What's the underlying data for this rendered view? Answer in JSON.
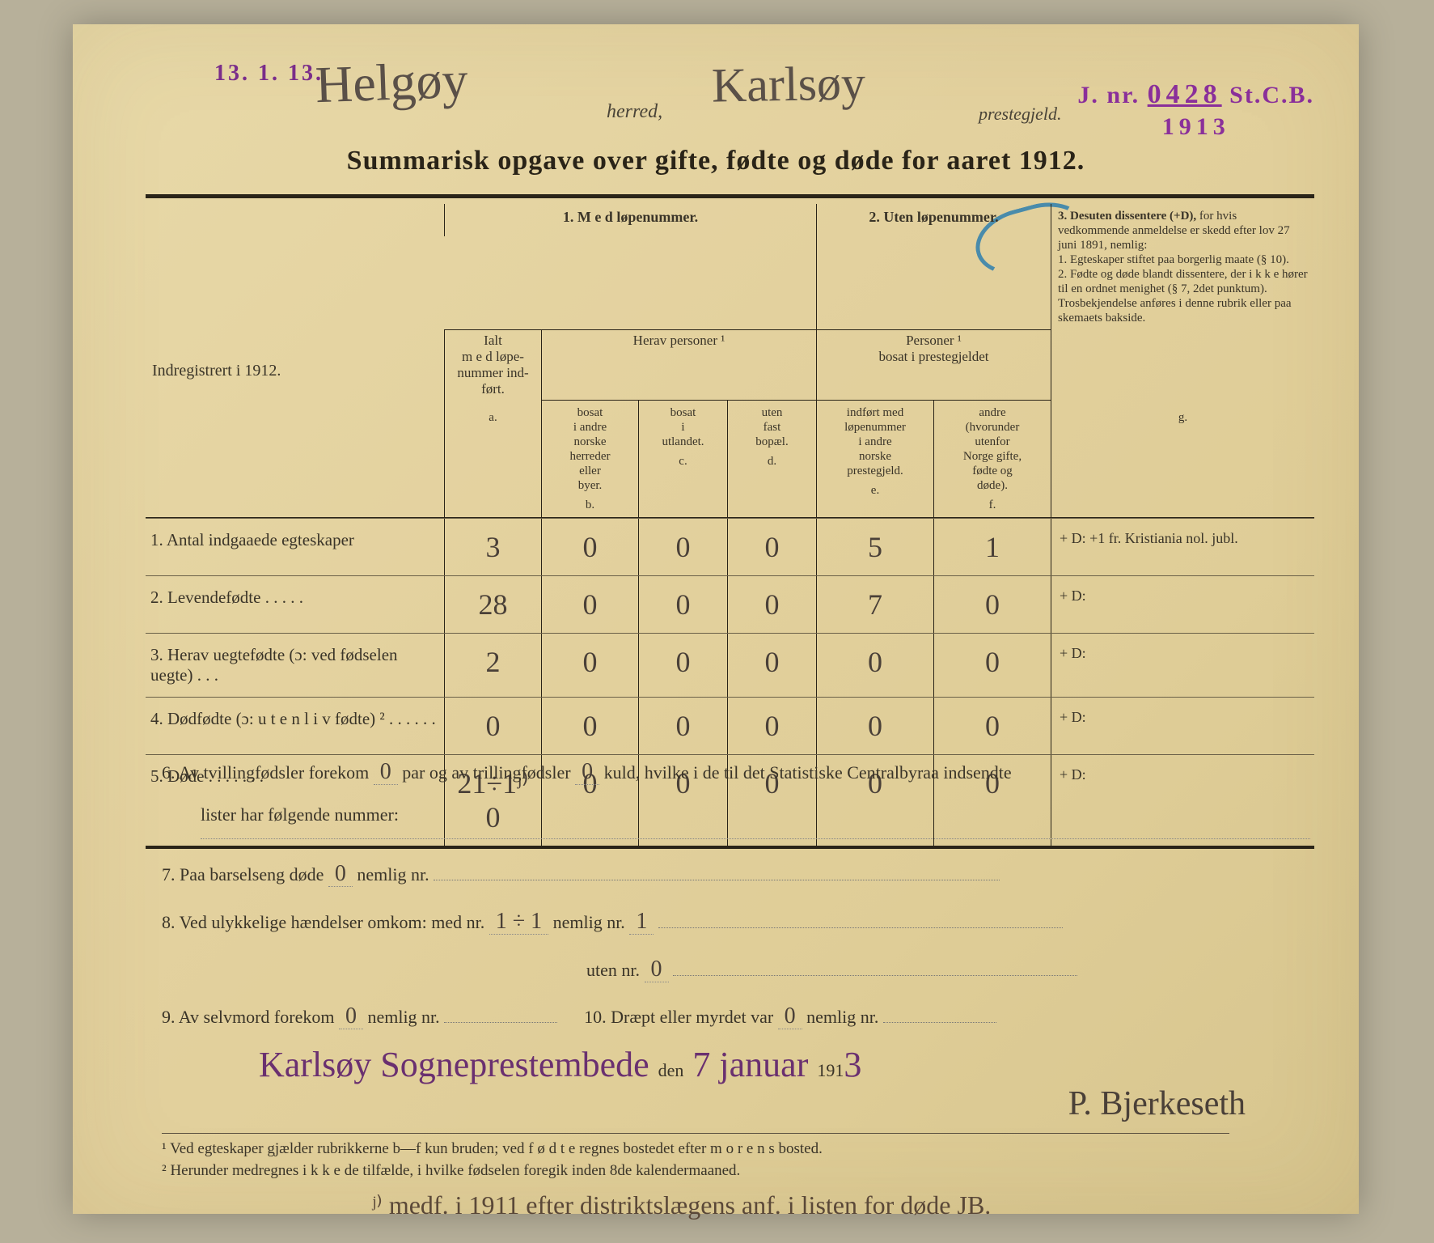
{
  "colors": {
    "background": "#b7b09a",
    "paper_grad_start": "#e8d9a8",
    "paper_grad_end": "#d7c58e",
    "ink": "#3a3428",
    "stamp_purple": "#7a2d8a",
    "pencil": "#5a5048",
    "blue_crayon": "#2f7fae"
  },
  "typography": {
    "body_family": "Times New Roman",
    "script_family": "Brush Script MT",
    "title_pt": 34,
    "body_pt": 20,
    "header_pt": 17,
    "handwritten_pt": 36
  },
  "stamps": {
    "top_left_date": "13. 1. 13.",
    "jnr_prefix": "J. nr.",
    "jnr_number": "0428",
    "jnr_suffix": "St.C.B.",
    "jnr_year": "1913"
  },
  "header": {
    "herred_script": "Helgøy",
    "herred_label": "herred,",
    "prestegjeld_script": "Karlsøy",
    "prestegjeld_label": "prestegjeld.",
    "title": "Summarisk opgave over gifte, fødte og døde for aaret 1912."
  },
  "table": {
    "row_header": "Indregistrert i 1912.",
    "top_headers": {
      "col1": "1.  M e d  løpenummer.",
      "col2": "2. Uten løpenummer.",
      "col3": "3. Desuten dissentere (+D),"
    },
    "mid_headers": {
      "ialt": "Ialt\nm e d løpe-\nnummer ind-\nført.",
      "herav": "Herav personer ¹",
      "personer": "Personer ¹\nbosat i prestegjeldet"
    },
    "col3_text": "for hvis vedkommende anmeldelse er skedd efter lov 27 juni 1891, nemlig:\n1. Egteskaper stiftet paa borgerlig maate (§ 10).\n2. Fødte og døde blandt dissentere, der i k k e hører til en ordnet menighet (§ 7, 2det punktum).\nTrosbekjendelse anføres i denne rubrik eller paa skemaets bakside.",
    "sub_headers": {
      "b": "bosat\ni andre\nnorske\nherreder\neller\nbyer.",
      "c": "bosat\ni\nutlandet.",
      "d": "uten\nfast\nbopæl.",
      "e": "indført med\nløpenummer\ni andre\nnorske\nprestegjeld.",
      "f": "andre\n(hvorunder\nutenfor\nNorge gifte,\nfødte og\ndøde)."
    },
    "letters": {
      "a": "a.",
      "b": "b.",
      "c": "c.",
      "d": "d.",
      "e": "e.",
      "f": "f.",
      "g": "g."
    },
    "rows": [
      {
        "n": "1.",
        "label": "Antal indgaaede egteskaper",
        "a": "3",
        "b": "0",
        "c": "0",
        "d": "0",
        "e": "5",
        "f": "1",
        "g": "+ D:  +1  fr. Kristiania nol. jubl."
      },
      {
        "n": "2.",
        "label": "Levendefødte   .   .   .   .   .",
        "a": "28",
        "b": "0",
        "c": "0",
        "d": "0",
        "e": "7",
        "f": "0",
        "g": "+ D:"
      },
      {
        "n": "3.",
        "label": "Herav uegtefødte (ɔ: ved fødselen uegte)   .   .   .",
        "a": "2",
        "b": "0",
        "c": "0",
        "d": "0",
        "e": "0",
        "f": "0",
        "g": "+ D:"
      },
      {
        "n": "4.",
        "label": "Dødfødte (ɔ: u t e n  l i v fødte) ²   .   .   .   .   .   .",
        "a": "0",
        "b": "0",
        "c": "0",
        "d": "0",
        "e": "0",
        "f": "0",
        "g": "+ D:"
      },
      {
        "n": "5.",
        "label": "Døde   .   .   .   .   .   .   .",
        "a": "21÷1ʲ⁾0",
        "b": "0",
        "c": "0",
        "d": "0",
        "e": "0",
        "f": "0",
        "g": "+ D:"
      }
    ]
  },
  "notes": {
    "l6a": "6.   Av tvillingfødsler forekom",
    "l6_twin": "0",
    "l6b": "par og av trillingfødsler",
    "l6_trip": "0",
    "l6c": "kuld, hvilke i de til det Statistiske Centralbyraa indsendte",
    "l6d": "lister har følgende nummer:",
    "l7a": "7.   Paa barselseng døde",
    "l7_v": "0",
    "l7b": "nemlig nr.",
    "l8a": "8.   Ved ulykkelige hændelser omkom:  med nr.",
    "l8_v1": "1 ÷ 1",
    "l8b": "nemlig nr.",
    "l8_v2": "1",
    "l8c": "uten nr.",
    "l8_v3": "0",
    "l9a": "9.   Av selvmord forekom",
    "l9_v": "0",
    "l9b": "nemlig nr.",
    "l10a": "10.  Dræpt eller myrdet var",
    "l10_v": "0",
    "l10b": "nemlig nr."
  },
  "signature": {
    "place": "Karlsøy Sogneprestembede",
    "den": "den",
    "date": "7 januar",
    "year_prefix": "191",
    "year_hand": "3",
    "name": "P. Bjerkeseth"
  },
  "footnotes": {
    "f1": "¹ Ved egteskaper gjælder rubrikkerne b—f kun bruden; ved f ø d t e regnes bostedet efter m o r e n s bosted.",
    "f2": "² Herunder medregnes i k k e de tilfælde, i hvilke fødselen foregik inden 8de kalendermaaned."
  },
  "bottom_hand": "ʲ⁾ medf. i 1911 efter distriktslægens anf. i listen for døde  JB."
}
